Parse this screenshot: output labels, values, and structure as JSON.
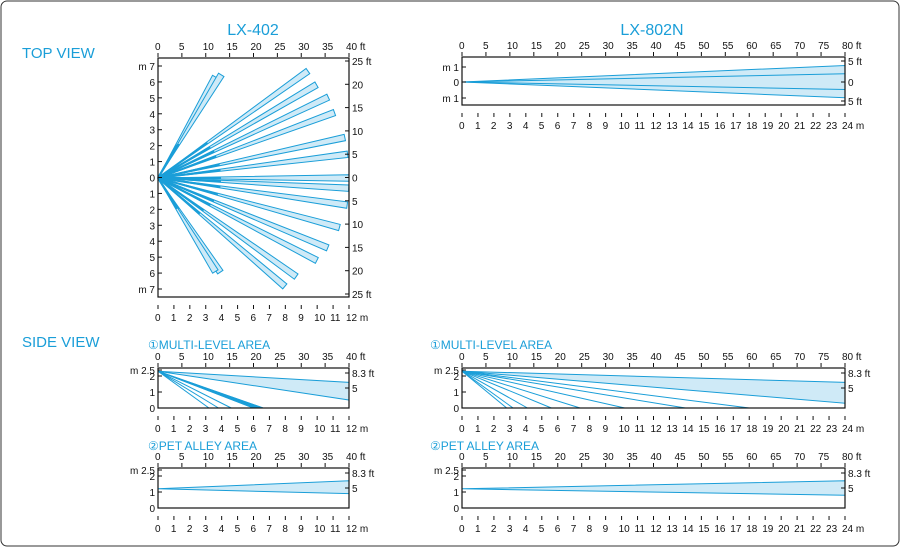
{
  "colors": {
    "accent": "#1a9ed8",
    "beam_fill": "#cfeaf7",
    "beam_stroke": "#1a9ed8",
    "dark_beam": "#1a9ed8",
    "axis": "#111111"
  },
  "headings": {
    "top_view": "TOP VIEW",
    "side_view": "SIDE VIEW"
  },
  "models": {
    "lx402": "LX-402",
    "lx802n": "LX-802N"
  },
  "subtitles": {
    "lx402_multi": "①MULTI-LEVEL AREA",
    "lx402_pet": "②PET ALLEY AREA",
    "lx802n_multi": "①MULTI-LEVEL AREA",
    "lx802n_pet": "②PET ALLEY AREA"
  },
  "lx402_top": {
    "x_ft_ticks": [
      "0",
      "5",
      "10",
      "15",
      "20",
      "25",
      "30",
      "35",
      "40 ft"
    ],
    "x_m_ticks": [
      "0",
      "1",
      "2",
      "3",
      "4",
      "5",
      "6",
      "7",
      "8",
      "9",
      "10",
      "11",
      "12 m"
    ],
    "y_m_ticks": [
      "m 7",
      "6",
      "5",
      "4",
      "3",
      "2",
      "1",
      "0",
      "1",
      "2",
      "3",
      "4",
      "5",
      "6",
      "m 7"
    ],
    "y_ft_ticks": [
      "25 ft",
      "20",
      "15",
      "10",
      "5",
      "0",
      "5",
      "10",
      "15",
      "20",
      "25 ft"
    ],
    "beam_angles_deg": [
      -60,
      -58,
      -35,
      -30,
      -25,
      -20,
      -12,
      -7,
      0,
      3,
      8,
      15,
      22,
      27,
      35,
      40,
      56,
      58
    ],
    "beam_lengths_m": [
      7.2,
      7.5,
      11.5,
      11.5,
      11.8,
      11.8,
      12,
      12,
      12,
      12,
      12,
      11.8,
      11.5,
      11.2,
      10.6,
      10.4,
      7.0,
      6.8
    ]
  },
  "lx802n_top": {
    "x_ft_ticks": [
      "0",
      "5",
      "10",
      "15",
      "20",
      "25",
      "30",
      "35",
      "40",
      "45",
      "50",
      "55",
      "60",
      "65",
      "70",
      "75",
      "80 ft"
    ],
    "x_m_ticks": [
      "0",
      "1",
      "2",
      "3",
      "4",
      "5",
      "6",
      "7",
      "8",
      "9",
      "10",
      "11",
      "12",
      "13",
      "14",
      "15",
      "16",
      "17",
      "18",
      "19",
      "20",
      "21",
      "22",
      "23",
      "24 m"
    ],
    "y_m_ticks": [
      "m 1",
      "0",
      "m 1"
    ],
    "y_ft_ticks": [
      "5 ft",
      "0",
      "5 ft"
    ],
    "far_half_width_m": [
      1.1,
      0.55,
      -0.5,
      -1.05
    ]
  },
  "lx402_multi": {
    "x_ft_ticks": [
      "0",
      "5",
      "10",
      "15",
      "20",
      "25",
      "30",
      "35",
      "40 ft"
    ],
    "x_m_ticks": [
      "0",
      "1",
      "2",
      "3",
      "4",
      "5",
      "6",
      "7",
      "8",
      "9",
      "10",
      "11",
      "12 m"
    ],
    "y_m_ticks": [
      "m 2.5",
      "2",
      "1",
      "0"
    ],
    "y_ft_ticks": [
      "8.3 ft",
      "5"
    ],
    "sensor_height_m": 2.3,
    "ground_hits_m": [
      3.2,
      3.8,
      4.6,
      6.0,
      6.6
    ],
    "far_heights_m": [
      1.6,
      0.5
    ]
  },
  "lx402_pet": {
    "x_ft_ticks": [
      "0",
      "5",
      "10",
      "15",
      "20",
      "25",
      "30",
      "35",
      "40 ft"
    ],
    "x_m_ticks": [
      "0",
      "1",
      "2",
      "3",
      "4",
      "5",
      "6",
      "7",
      "8",
      "9",
      "10",
      "11",
      "12 m"
    ],
    "y_m_ticks": [
      "m 2.5",
      "2",
      "1",
      "0"
    ],
    "y_ft_ticks": [
      "8.3 ft",
      "5"
    ],
    "sensor_height_m": 1.2,
    "far_heights_m": [
      1.7,
      0.9
    ]
  },
  "lx802n_multi": {
    "x_ft_ticks": [
      "0",
      "5",
      "10",
      "15",
      "20",
      "25",
      "30",
      "35",
      "40",
      "45",
      "50",
      "55",
      "60",
      "65",
      "70",
      "75",
      "80 ft"
    ],
    "x_m_ticks": [
      "0",
      "1",
      "2",
      "3",
      "4",
      "5",
      "6",
      "7",
      "8",
      "9",
      "10",
      "11",
      "12",
      "13",
      "14",
      "15",
      "16",
      "17",
      "18",
      "19",
      "20",
      "21",
      "22",
      "23",
      "24 m"
    ],
    "y_m_ticks": [
      "m 2.5",
      "2",
      "1",
      "0"
    ],
    "y_ft_ticks": [
      "8.3 ft",
      "5"
    ],
    "sensor_height_m": 2.3,
    "ground_hits_m": [
      2.8,
      3.2,
      4.1,
      5.6,
      7.4,
      10.2,
      14.0,
      18.0
    ],
    "far_heights_m": [
      1.6,
      0.3
    ]
  },
  "lx802n_pet": {
    "x_ft_ticks": [
      "0",
      "5",
      "10",
      "15",
      "20",
      "25",
      "30",
      "35",
      "40",
      "45",
      "50",
      "55",
      "60",
      "65",
      "70",
      "75",
      "80 ft"
    ],
    "x_m_ticks": [
      "0",
      "1",
      "2",
      "3",
      "4",
      "5",
      "6",
      "7",
      "8",
      "9",
      "10",
      "11",
      "12",
      "13",
      "14",
      "15",
      "16",
      "17",
      "18",
      "19",
      "20",
      "21",
      "22",
      "23",
      "24 m"
    ],
    "y_m_ticks": [
      "m 2.5",
      "2",
      "1",
      "0"
    ],
    "y_ft_ticks": [
      "8.3 ft",
      "5"
    ],
    "sensor_height_m": 1.2,
    "far_heights_m": [
      1.7,
      0.8
    ]
  }
}
